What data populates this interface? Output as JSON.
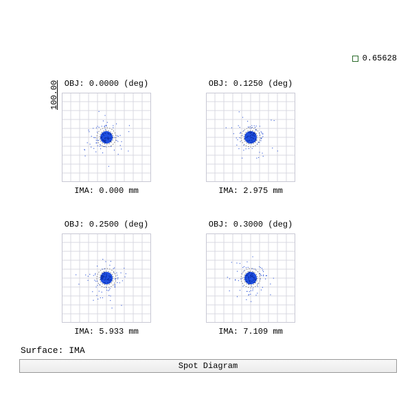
{
  "legend": {
    "wavelength": "0.65628",
    "swatch_color": "#ffffff",
    "swatch_border": "#2a6a2a"
  },
  "yaxis_label": "100.00",
  "surface_label": "Surface: IMA",
  "diagram_title": "Spot Diagram",
  "grid": {
    "line_color": "#d8d8e2",
    "border_color": "#c8c8d4",
    "divisions": 10
  },
  "airy": {
    "r1": 10,
    "r2": 14,
    "stroke": "#666666",
    "dash": "1.5 2"
  },
  "spot_style": {
    "core_fill": "#1f4fe0",
    "dot_fill": "#2a52d6",
    "core_radius": 9,
    "scatter_size": 1.1,
    "scatter_radius_min": 18,
    "scatter_radius_max": 50,
    "scatter_count": 60,
    "seed_base": 11
  },
  "panels": [
    {
      "obj_label": "OBJ: 0.0000 (deg)",
      "ima_label": "IMA: 0.000 mm",
      "seed": 11
    },
    {
      "obj_label": "OBJ: 0.1250 (deg)",
      "ima_label": "IMA: 2.975 mm",
      "seed": 23
    },
    {
      "obj_label": "OBJ: 0.2500 (deg)",
      "ima_label": "IMA: 5.933 mm",
      "seed": 37
    },
    {
      "obj_label": "OBJ: 0.3000 (deg)",
      "ima_label": "IMA: 7.109 mm",
      "seed": 41
    }
  ]
}
